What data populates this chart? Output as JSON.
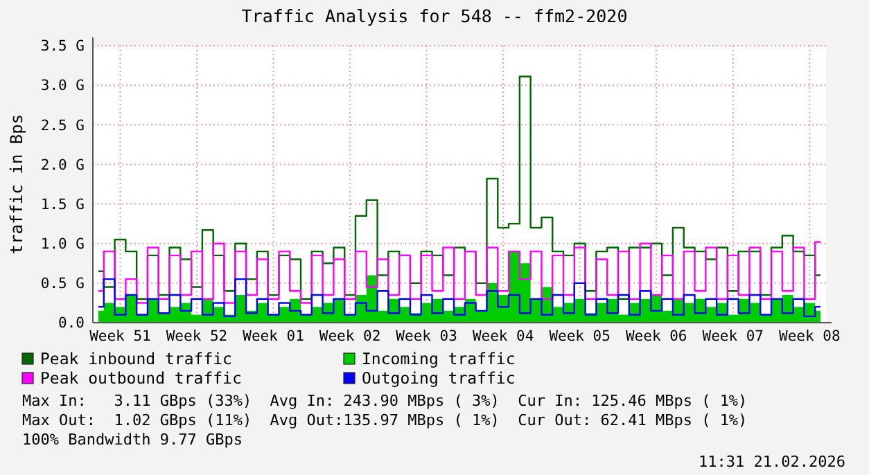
{
  "chart_data": {
    "type": "step",
    "title": "Traffic Analysis for 548 -- ffm2-2020",
    "ylabel": "traffic in Bps",
    "categories": [
      null,
      null,
      "Week 51",
      null,
      null,
      null,
      null,
      null,
      null,
      "Week 52",
      null,
      null,
      null,
      null,
      null,
      null,
      "Week 01",
      null,
      null,
      null,
      null,
      null,
      null,
      "Week 02",
      null,
      null,
      null,
      null,
      null,
      null,
      "Week 03",
      null,
      null,
      null,
      null,
      null,
      null,
      "Week 04",
      null,
      null,
      null,
      null,
      null,
      null,
      "Week 05",
      null,
      null,
      null,
      null,
      null,
      null,
      "Week 06",
      null,
      null,
      null,
      null,
      null,
      null,
      "Week 07",
      null,
      null,
      null,
      null,
      null,
      null,
      "Week 08",
      null
    ],
    "ylim": [
      0,
      3.5
    ],
    "yticks": [
      {
        "value": 0,
        "label": "0.0"
      },
      {
        "value": 0.5,
        "label": "0.5 G"
      },
      {
        "value": 1,
        "label": "1.0 G"
      },
      {
        "value": 1.5,
        "label": "1.5 G"
      },
      {
        "value": 2,
        "label": "2.0 G"
      },
      {
        "value": 2.5,
        "label": "2.5 G"
      },
      {
        "value": 3,
        "label": "3.0 G"
      },
      {
        "value": 3.5,
        "label": "3.5 G"
      }
    ],
    "grid": true,
    "legend": "bottom",
    "series": [
      {
        "name": "Peak inbound traffic",
        "color": "#006600",
        "values": [
          0.65,
          0.45,
          1.05,
          0.9,
          0.3,
          0.85,
          0.35,
          0.95,
          0.8,
          0.45,
          1.17,
          0.85,
          0.4,
          1.0,
          0.55,
          0.9,
          0.35,
          0.85,
          0.8,
          0.3,
          0.9,
          0.75,
          0.95,
          0.35,
          1.35,
          1.55,
          0.6,
          0.9,
          0.85,
          0.5,
          0.9,
          0.85,
          0.6,
          0.95,
          0.9,
          0.5,
          1.82,
          1.2,
          1.25,
          3.11,
          1.2,
          1.33,
          0.9,
          0.85,
          1.0,
          0.4,
          0.9,
          0.95,
          0.3,
          0.95,
          0.95,
          1.0,
          0.6,
          1.2,
          0.95,
          0.9,
          0.8,
          0.95,
          0.4,
          0.9,
          0.9,
          0.35,
          0.95,
          1.1,
          0.9,
          0.85,
          0.6
        ]
      },
      {
        "name": "Incoming traffic",
        "type": "area",
        "color": "#00cc00",
        "values": [
          0.15,
          0.25,
          0.2,
          0.35,
          0.1,
          0.3,
          0.12,
          0.2,
          0.25,
          0.1,
          0.3,
          0.2,
          0.1,
          0.35,
          0.15,
          0.25,
          0.1,
          0.2,
          0.3,
          0.1,
          0.2,
          0.25,
          0.3,
          0.1,
          0.35,
          0.6,
          0.15,
          0.3,
          0.2,
          0.12,
          0.25,
          0.3,
          0.15,
          0.2,
          0.3,
          0.15,
          0.5,
          0.35,
          0.9,
          0.75,
          0.3,
          0.45,
          0.2,
          0.25,
          0.3,
          0.12,
          0.25,
          0.3,
          0.1,
          0.25,
          0.3,
          0.35,
          0.15,
          0.3,
          0.25,
          0.3,
          0.2,
          0.25,
          0.1,
          0.3,
          0.25,
          0.1,
          0.3,
          0.35,
          0.2,
          0.25,
          0.15
        ]
      },
      {
        "name": "Peak outbound traffic",
        "color": "#ff00ff",
        "values": [
          0.4,
          0.9,
          0.3,
          0.55,
          0.25,
          0.95,
          0.3,
          0.85,
          0.35,
          0.9,
          0.3,
          1.0,
          0.25,
          0.9,
          0.35,
          0.8,
          0.3,
          0.9,
          0.4,
          0.25,
          0.85,
          0.35,
          0.8,
          0.3,
          0.9,
          0.45,
          0.8,
          0.35,
          0.85,
          0.3,
          0.85,
          0.4,
          0.95,
          0.3,
          0.9,
          0.35,
          0.95,
          0.4,
          0.9,
          0.55,
          0.9,
          0.3,
          0.85,
          0.35,
          0.95,
          0.3,
          0.8,
          0.35,
          0.9,
          0.3,
          1.0,
          0.35,
          0.85,
          0.3,
          0.9,
          0.4,
          0.95,
          0.3,
          0.85,
          0.35,
          0.95,
          0.3,
          0.9,
          0.4,
          0.95,
          0.3,
          1.02
        ]
      },
      {
        "name": "Outgoing traffic",
        "color": "#0000ff",
        "values": [
          0.2,
          0.55,
          0.1,
          0.35,
          0.1,
          0.3,
          0.12,
          0.35,
          0.15,
          0.3,
          0.1,
          0.25,
          0.08,
          0.55,
          0.12,
          0.3,
          0.1,
          0.25,
          0.15,
          0.1,
          0.35,
          0.12,
          0.3,
          0.1,
          0.25,
          0.15,
          0.4,
          0.12,
          0.3,
          0.1,
          0.35,
          0.12,
          0.3,
          0.1,
          0.25,
          0.15,
          0.4,
          0.2,
          0.35,
          0.12,
          0.3,
          0.1,
          0.35,
          0.12,
          0.5,
          0.1,
          0.3,
          0.12,
          0.35,
          0.1,
          0.4,
          0.15,
          0.3,
          0.1,
          0.35,
          0.12,
          0.3,
          0.1,
          0.3,
          0.12,
          0.35,
          0.1,
          0.3,
          0.12,
          0.3,
          0.08,
          0.2
        ]
      }
    ],
    "annotations": [
      "Max In:   3.11 GBps (33%)  Avg In: 243.90 MBps ( 3%)  Cur In: 125.46 MBps ( 1%)",
      "Max Out:  1.02 GBps (11%)  Avg Out:135.97 MBps ( 1%)  Cur Out: 62.41 MBps ( 1%)",
      "100% Bandwidth 9.77 GBps",
      "11:31 21.02.2026"
    ]
  }
}
